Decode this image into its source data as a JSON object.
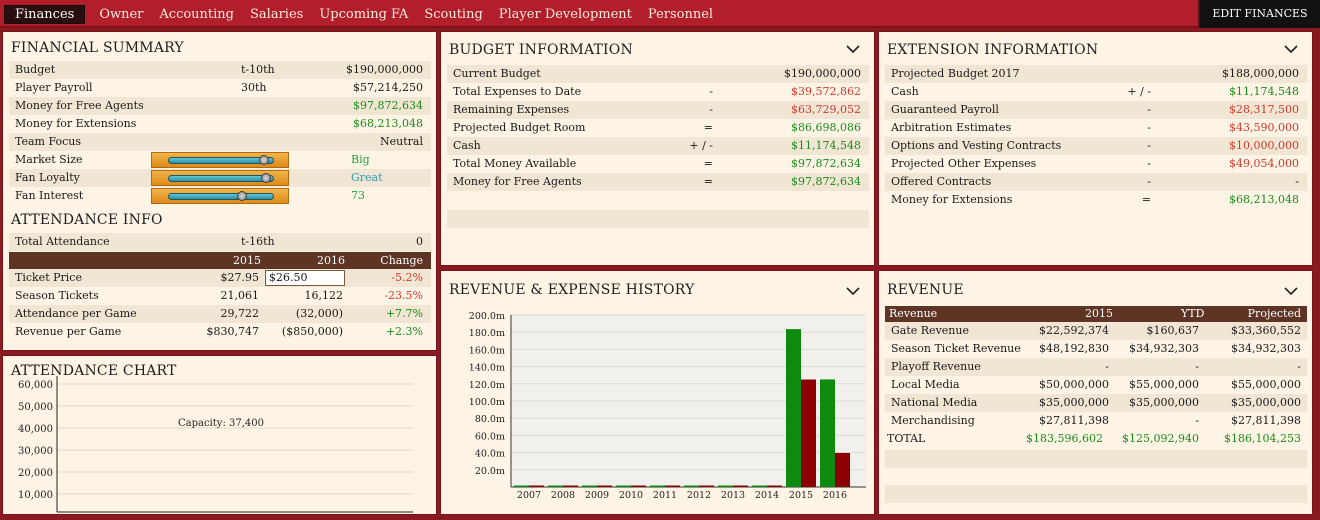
{
  "nav": {
    "tabs": [
      "Finances",
      "Owner",
      "Accounting",
      "Salaries",
      "Upcoming FA",
      "Scouting",
      "Player Development",
      "Personnel"
    ],
    "edit_label": "EDIT FINANCES"
  },
  "financial_summary": {
    "title": "FINANCIAL SUMMARY",
    "rows": [
      {
        "label": "Budget",
        "rank": "t-10th",
        "value": "$190,000,000",
        "color": ""
      },
      {
        "label": "Player Payroll",
        "rank": "30th",
        "value": "$57,214,250",
        "color": ""
      },
      {
        "label": "Money for Free Agents",
        "rank": "",
        "value": "$97,872,634",
        "color": "green"
      },
      {
        "label": "Money for Extensions",
        "rank": "",
        "value": "$68,213,048",
        "color": "green"
      },
      {
        "label": "Team Focus",
        "rank": "",
        "value": "Neutral",
        "color": ""
      }
    ],
    "sliders": [
      {
        "label": "Market Size",
        "value": "Big",
        "level": 0.95
      },
      {
        "label": "Fan Loyalty",
        "value": "Great",
        "level": 0.97
      },
      {
        "label": "Fan Interest",
        "value": "73",
        "level": 0.73
      }
    ]
  },
  "attendance_info": {
    "title": "ATTENDANCE INFO",
    "total_label": "Total Attendance",
    "total_rank": "t-16th",
    "total_value": "0",
    "headers": [
      "2015",
      "2016",
      "Change"
    ],
    "rows": [
      {
        "label": "Ticket Price",
        "y2015": "$27.95",
        "y2016": "$26.50",
        "change": "-5.2%",
        "color": "red"
      },
      {
        "label": "Season Tickets",
        "y2015": "21,061",
        "y2016": "16,122",
        "change": "-23.5%",
        "color": "red"
      },
      {
        "label": "Attendance per Game",
        "y2015": "29,722",
        "y2016": "(32,000)",
        "change": "+7.7%",
        "color": "green"
      },
      {
        "label": "Revenue per Game",
        "y2015": "$830,747",
        "y2016": "($850,000)",
        "change": "+2.3%",
        "color": "green"
      }
    ]
  },
  "attendance_chart": {
    "title": "ATTENDANCE CHART",
    "y_ticks": [
      "60,000",
      "50,000",
      "40,000",
      "30,000",
      "20,000",
      "10,000"
    ],
    "capacity_label": "Capacity: 37,400"
  },
  "budget_info": {
    "title": "BUDGET INFORMATION",
    "rows": [
      {
        "label": "Current Budget",
        "op": "",
        "value": "$190,000,000",
        "color": ""
      },
      {
        "label": "Total Expenses to Date",
        "op": "-",
        "value": "$39,572,862",
        "color": "red"
      },
      {
        "label": "Remaining Expenses",
        "op": "-",
        "value": "$63,729,052",
        "color": "red"
      },
      {
        "label": "Projected Budget Room",
        "op": "=",
        "value": "$86,698,086",
        "color": "green"
      },
      {
        "label": "Cash",
        "op": "+ / -",
        "value": "$11,174,548",
        "color": "green"
      },
      {
        "label": "Total Money Available",
        "op": "=",
        "value": "$97,872,634",
        "color": "green"
      },
      {
        "label": "Money for Free Agents",
        "op": "=",
        "value": "$97,872,634",
        "color": "green"
      }
    ]
  },
  "extension_info": {
    "title": "EXTENSION INFORMATION",
    "rows": [
      {
        "label": "Projected Budget 2017",
        "op": "",
        "value": "$188,000,000",
        "color": ""
      },
      {
        "label": "Cash",
        "op": "+ / -",
        "value": "$11,174,548",
        "color": "green"
      },
      {
        "label": "Guaranteed Payroll",
        "op": "-",
        "value": "$28,317,500",
        "color": "red"
      },
      {
        "label": "Arbitration Estimates",
        "op": "-",
        "value": "$43,590,000",
        "color": "red"
      },
      {
        "label": "Options and Vesting Contracts",
        "op": "-",
        "value": "$10,000,000",
        "color": "red"
      },
      {
        "label": "Projected Other Expenses",
        "op": "-",
        "value": "$49,054,000",
        "color": "red"
      },
      {
        "label": "Offered Contracts",
        "op": "-",
        "value": "-",
        "color": ""
      },
      {
        "label": "Money for Extensions",
        "op": "=",
        "value": "$68,213,048",
        "color": "green"
      }
    ]
  },
  "rev_exp_history": {
    "title": "REVENUE & EXPENSE HISTORY"
  },
  "chart_data": {
    "type": "bar",
    "categories": [
      "2007",
      "2008",
      "2009",
      "2010",
      "2011",
      "2012",
      "2013",
      "2014",
      "2015",
      "2016"
    ],
    "series": [
      {
        "values": [
          0,
          0,
          0,
          0,
          0,
          0,
          0,
          0,
          183.6,
          125.1
        ],
        "color": "#0e8a0e"
      },
      {
        "values": [
          0,
          0,
          0,
          0,
          0,
          0,
          0,
          0,
          125.0,
          39.6
        ],
        "color": "#8b0000"
      }
    ],
    "y_tick_labels": [
      "20.0m",
      "40.0m",
      "60.0m",
      "80.0m",
      "100.0m",
      "120.0m",
      "140.0m",
      "160.0m",
      "180.0m",
      "200.0m"
    ],
    "ylim": [
      0,
      200
    ],
    "grid": true
  },
  "revenue": {
    "title": "REVENUE",
    "headers": [
      "Revenue",
      "2015",
      "YTD",
      "Projected"
    ],
    "rows": [
      {
        "label": "Gate Revenue",
        "y2015": "$22,592,374",
        "ytd": "$160,637",
        "proj": "$33,360,552"
      },
      {
        "label": "Season Ticket Revenue",
        "y2015": "$48,192,830",
        "ytd": "$34,932,303",
        "proj": "$34,932,303"
      },
      {
        "label": "Playoff Revenue",
        "y2015": "-",
        "ytd": "-",
        "proj": "-"
      },
      {
        "label": "Local Media",
        "y2015": "$50,000,000",
        "ytd": "$55,000,000",
        "proj": "$55,000,000"
      },
      {
        "label": "National Media",
        "y2015": "$35,000,000",
        "ytd": "$35,000,000",
        "proj": "$35,000,000"
      },
      {
        "label": "Merchandising",
        "y2015": "$27,811,398",
        "ytd": "-",
        "proj": "$27,811,398"
      }
    ],
    "total": {
      "label": "TOTAL",
      "y2015": "$183,596,602",
      "ytd": "$125,092,940",
      "proj": "$186,104,253"
    }
  }
}
